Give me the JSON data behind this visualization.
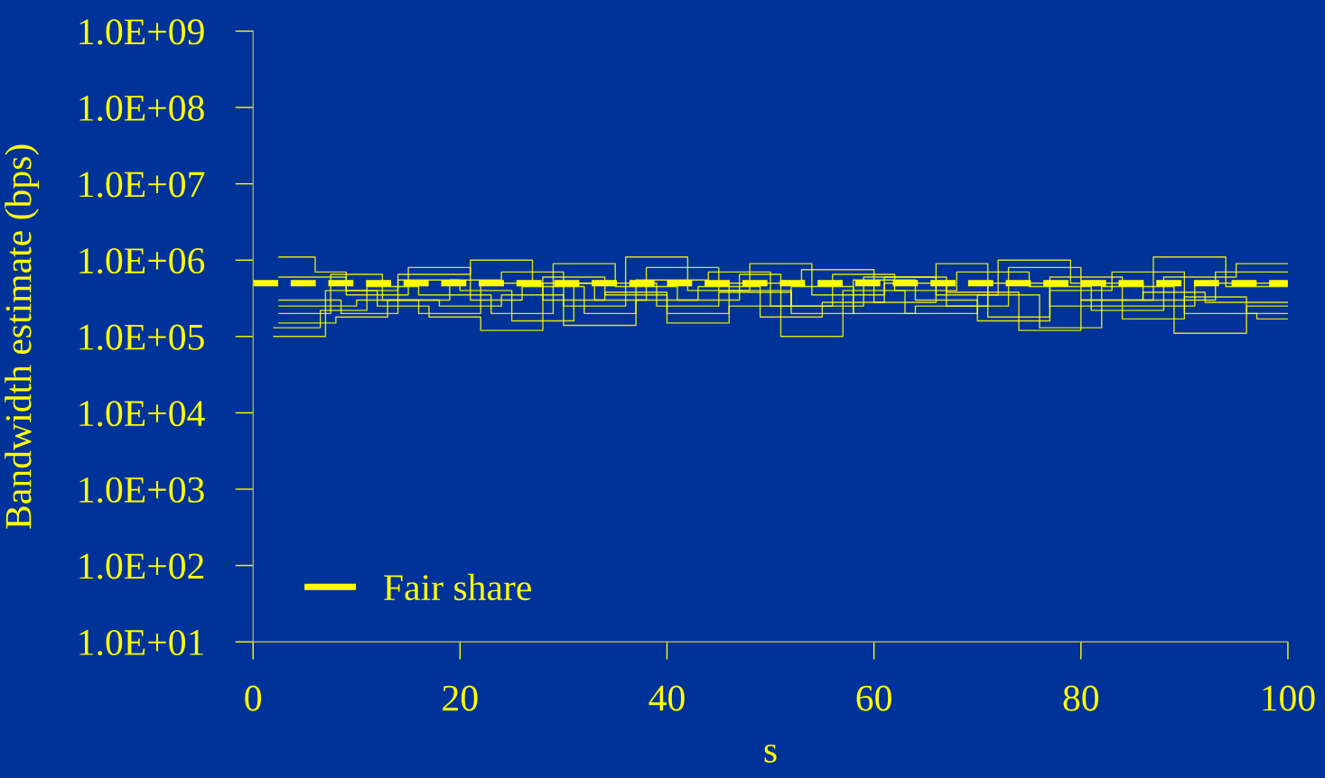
{
  "chart_data": {
    "type": "step",
    "xlabel": "s",
    "ylabel": "Bandwidth estimate (bps)",
    "log": "y",
    "grid": false,
    "legend": "bottom left",
    "marker": "none",
    "xlim": [
      0,
      100
    ],
    "xticks": [
      0,
      20,
      40,
      60,
      80,
      100
    ],
    "ylim": [
      10,
      1000000000
    ],
    "yticks": [
      {
        "value": 10,
        "label": "1.0E+01"
      },
      {
        "value": 100,
        "label": "1.0E+02"
      },
      {
        "value": 1000,
        "label": "1.0E+03"
      },
      {
        "value": 10000,
        "label": "1.0E+04"
      },
      {
        "value": 100000,
        "label": "1.0E+05"
      },
      {
        "value": 1000000,
        "label": "1.0E+06"
      },
      {
        "value": 10000000,
        "label": "1.0E+07"
      },
      {
        "value": 100000000,
        "label": "1.0E+08"
      },
      {
        "value": 1000000000,
        "label": "1.0E+09"
      }
    ],
    "series": [
      {
        "color": "#ffff00",
        "x": [
          2.5,
          6,
          9,
          14,
          21,
          27,
          33,
          38,
          45,
          52,
          59,
          66,
          72,
          79,
          86,
          93,
          100
        ],
        "values": [
          1100000,
          700000,
          400000,
          650000,
          1000000,
          500000,
          300000,
          800000,
          400000,
          250000,
          600000,
          350000,
          1000000,
          500000,
          300000,
          700000,
          700000
        ]
      },
      {
        "color": "#ffff00",
        "x": [
          2.5,
          8,
          13,
          19,
          24,
          30,
          36,
          42,
          48,
          54,
          61,
          67,
          73,
          80,
          87,
          94,
          100
        ],
        "values": [
          150000,
          180000,
          300000,
          550000,
          700000,
          250000,
          1100000,
          400000,
          900000,
          350000,
          500000,
          250000,
          800000,
          300000,
          1100000,
          450000,
          450000
        ]
      },
      {
        "color": "#ffff00",
        "x": [
          2,
          7,
          12,
          17,
          22,
          28,
          34,
          40,
          46,
          53,
          60,
          66,
          71,
          77,
          84,
          91,
          100
        ],
        "values": [
          100000,
          400000,
          250000,
          180000,
          120000,
          600000,
          350000,
          200000,
          500000,
          750000,
          280000,
          900000,
          180000,
          600000,
          250000,
          500000,
          500000
        ]
      },
      {
        "color": "#ffff00",
        "x": [
          2,
          6.5,
          11,
          16,
          23,
          29,
          35,
          41,
          47,
          51,
          57,
          63,
          70,
          76,
          82,
          89,
          96,
          100
        ],
        "values": [
          130000,
          220000,
          450000,
          350000,
          200000,
          900000,
          450000,
          300000,
          650000,
          100000,
          400000,
          200000,
          350000,
          130000,
          450000,
          110000,
          250000,
          250000
        ]
      },
      {
        "color": "#ffff00",
        "x": [
          2.5,
          9,
          15,
          21,
          26,
          32,
          37,
          44,
          50,
          56,
          62,
          68,
          75,
          81,
          88,
          95,
          100
        ],
        "values": [
          600000,
          350000,
          800000,
          300000,
          450000,
          200000,
          550000,
          700000,
          250000,
          650000,
          400000,
          700000,
          450000,
          220000,
          600000,
          900000,
          900000
        ]
      },
      {
        "color": "#ffff00",
        "x": [
          2.5,
          8.5,
          14,
          20,
          25,
          31,
          39,
          45,
          52,
          58,
          64,
          70,
          77,
          83,
          90,
          97,
          100
        ],
        "values": [
          300000,
          200000,
          550000,
          400000,
          160000,
          500000,
          250000,
          380000,
          200000,
          550000,
          300000,
          160000,
          400000,
          700000,
          200000,
          170000,
          170000
        ]
      },
      {
        "color": "#ffff00",
        "x": [
          2.5,
          7.5,
          12.5,
          18,
          24,
          30,
          37,
          43,
          49,
          55,
          61,
          67,
          74,
          80,
          86,
          92,
          100
        ],
        "values": [
          200000,
          650000,
          300000,
          250000,
          350000,
          140000,
          300000,
          450000,
          180000,
          280000,
          600000,
          380000,
          120000,
          300000,
          380000,
          280000,
          280000
        ]
      },
      {
        "color": "#ffff00",
        "x": [
          2.5,
          10,
          16,
          22,
          28,
          34,
          40,
          46,
          52,
          58,
          64,
          71,
          77,
          84,
          90,
          96,
          100
        ],
        "values": [
          250000,
          300000,
          200000,
          500000,
          300000,
          380000,
          150000,
          250000,
          450000,
          200000,
          250000,
          500000,
          250000,
          170000,
          330000,
          200000,
          200000
        ]
      },
      {
        "name": "Fair share",
        "type": "line",
        "line_style": "dashed",
        "color": "#ffff00",
        "x": [
          0,
          100
        ],
        "values": [
          500000,
          500000
        ]
      }
    ]
  }
}
